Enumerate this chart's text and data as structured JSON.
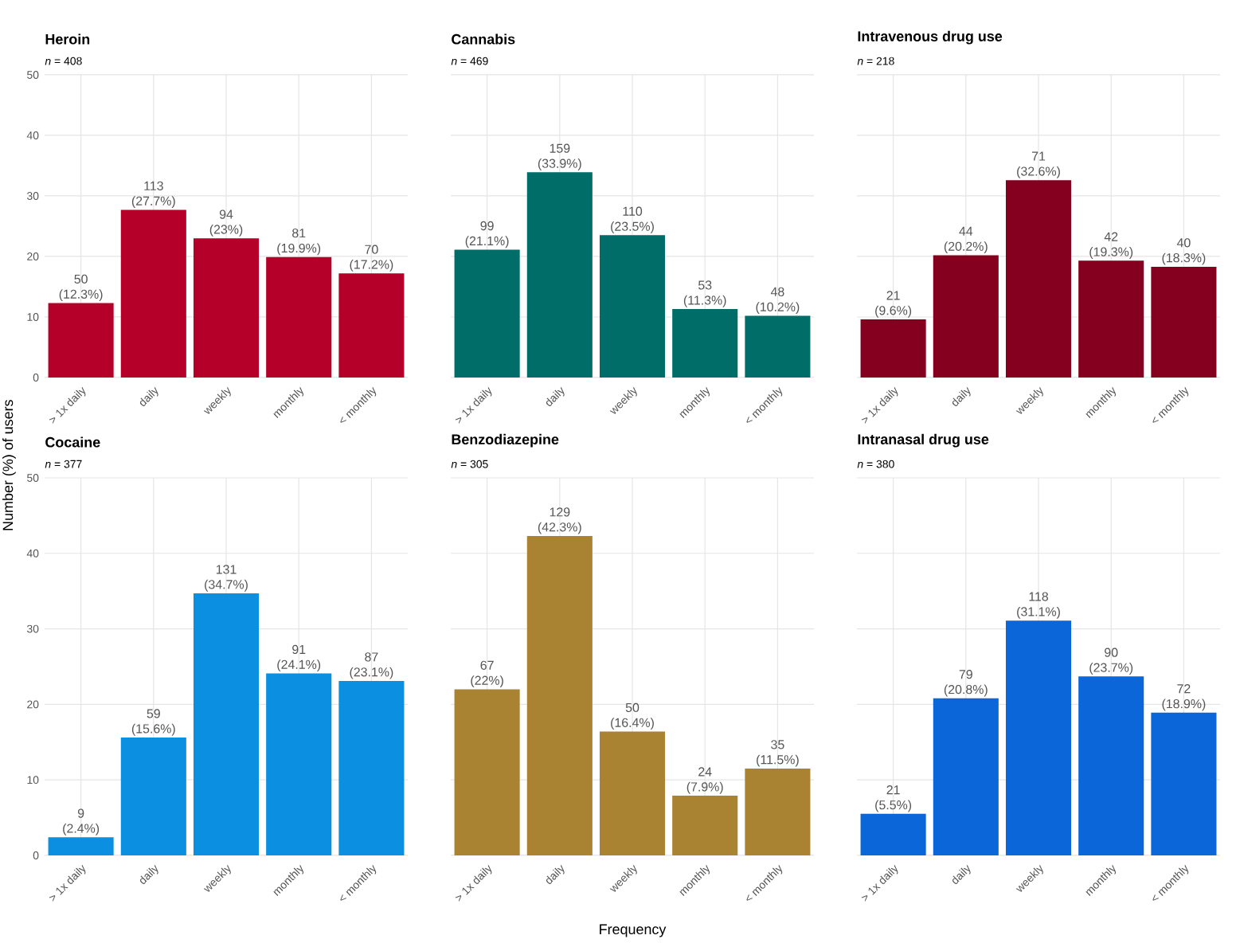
{
  "chart_data": [
    {
      "type": "bar",
      "title": "Heroin",
      "subtitle": "*n* = 408",
      "ylabel": "Number (%) of users",
      "categories": [
        "> 1x daily",
        "daily",
        "weekly",
        "monthly",
        "< monthly"
      ],
      "values": [
        12.3,
        27.7,
        23,
        19.9,
        17.2
      ],
      "value_labels": [
        "50 (12.3%)",
        "113 (27.7%)",
        "94 (23%)",
        "81 (19.9%)",
        "70 (17.2%)"
      ],
      "color": "#b5002a",
      "ylim": [
        0,
        50
      ],
      "yticks": [
        0,
        10,
        20,
        30,
        40,
        50
      ],
      "grid": true
    },
    {
      "type": "bar",
      "title": "Cannabis",
      "subtitle": "*n* = 469",
      "categories": [
        "> 1x daily",
        "daily",
        "weekly",
        "monthly",
        "< monthly"
      ],
      "values": [
        21.1,
        33.9,
        23.5,
        11.3,
        10.2
      ],
      "value_labels": [
        "99 (21.1%)",
        "159 (33.9%)",
        "110 (23.5%)",
        "53 (11.3%)",
        "48 (10.2%)"
      ],
      "color": "#006d68",
      "ylim": [
        0,
        50
      ],
      "yticks": [
        0,
        10,
        20,
        30,
        40,
        50
      ],
      "grid": true,
      "tick_labels": "x"
    },
    {
      "type": "bar",
      "title": "Intravenous drug use",
      "subtitle": "*n* = 218",
      "categories": [
        "> 1x daily",
        "daily",
        "weekly",
        "monthly",
        "< monthly"
      ],
      "values": [
        9.6,
        20.2,
        32.6,
        19.3,
        18.3
      ],
      "value_labels": [
        "21 (9.6%)",
        "44 (20.2%)",
        "71 (32.6%)",
        "42 (19.3%)",
        "40 (18.3%)"
      ],
      "color": "#85001f",
      "ylim": [
        0,
        50
      ],
      "yticks": [
        0,
        10,
        20,
        30,
        40,
        50
      ],
      "grid": true,
      "tick_labels": "x"
    },
    {
      "type": "bar",
      "title": "Cocaine",
      "subtitle": "*n* = 377",
      "categories": [
        "> 1x daily",
        "daily",
        "weekly",
        "monthly",
        "< monthly"
      ],
      "values": [
        2.4,
        15.6,
        34.7,
        24.1,
        23.1
      ],
      "value_labels": [
        "9 (2.4%)",
        "59 (15.6%)",
        "131 (34.7%)",
        "91 (24.1%)",
        "87 (23.1%)"
      ],
      "color": "#0b8fe0",
      "ylim": [
        0,
        50
      ],
      "yticks": [
        0,
        10,
        20,
        30,
        40,
        50
      ],
      "grid": true
    },
    {
      "type": "bar",
      "title": "Benzodiazepine",
      "subtitle": "*n* = 305",
      "xlabel": "Frequency",
      "categories": [
        "> 1x daily",
        "daily",
        "weekly",
        "monthly",
        "< monthly"
      ],
      "values": [
        22,
        42.3,
        16.4,
        7.9,
        11.5
      ],
      "value_labels": [
        "67 (22%)",
        "129 (42.3%)",
        "50 (16.4%)",
        "24 (7.9%)",
        "35 (11.5%)"
      ],
      "color": "#a98232",
      "ylim": [
        0,
        50
      ],
      "yticks": [
        0,
        10,
        20,
        30,
        40,
        50
      ],
      "grid": true,
      "tick_labels": "x"
    },
    {
      "type": "bar",
      "title": "Intranasal drug use",
      "subtitle": "*n* = 380",
      "categories": [
        "> 1x daily",
        "daily",
        "weekly",
        "monthly",
        "< monthly"
      ],
      "values": [
        5.5,
        20.8,
        31.1,
        23.7,
        18.9
      ],
      "value_labels": [
        "21 (5.5%)",
        "79 (20.8%)",
        "118 (31.1%)",
        "90 (23.7%)",
        "72 (18.9%)"
      ],
      "color": "#0b66d9",
      "ylim": [
        0,
        50
      ],
      "yticks": [
        0,
        10,
        20,
        30,
        40,
        50
      ],
      "grid": true,
      "tick_labels": "x"
    }
  ]
}
